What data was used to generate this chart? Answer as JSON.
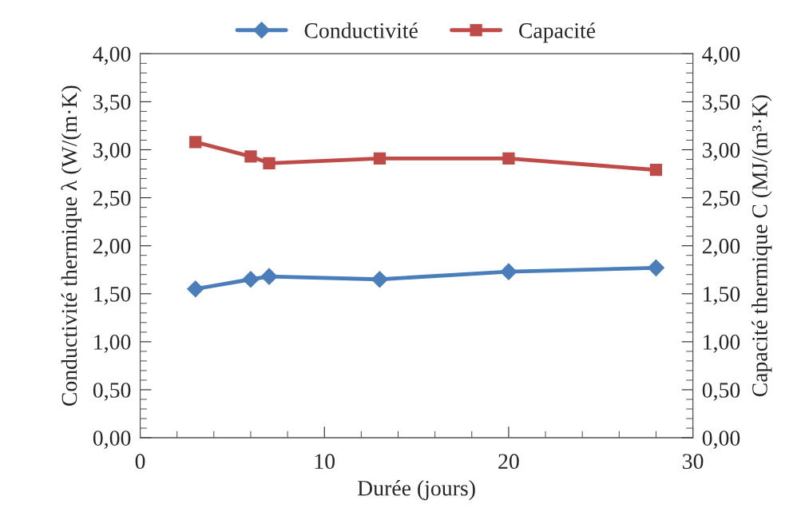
{
  "chart_data": {
    "type": "line",
    "x": [
      3,
      6,
      7,
      13,
      20,
      28
    ],
    "series": [
      {
        "name": "Conductivité",
        "color": "#4a7ebb",
        "marker": "diamond",
        "values": [
          1.55,
          1.65,
          1.68,
          1.65,
          1.73,
          1.77
        ]
      },
      {
        "name": "Capacité",
        "color": "#be4b48",
        "marker": "square",
        "values": [
          3.08,
          2.93,
          2.86,
          2.91,
          2.91,
          2.79
        ]
      }
    ],
    "xlabel": "Durée (jours)",
    "ylabel": "Conductivité thermique λ (W/(m·K)",
    "y2label": "Capacité thermique C (MJ/(m³·K)",
    "xlim": [
      0,
      30
    ],
    "xticks": [
      0,
      10,
      20,
      30
    ],
    "ylim": [
      0,
      4
    ],
    "yticks": [
      {
        "value": 0,
        "label": "0,00"
      },
      {
        "value": 0.5,
        "label": "0,50"
      },
      {
        "value": 1,
        "label": "1,00"
      },
      {
        "value": 1.5,
        "label": "1,50"
      },
      {
        "value": 2,
        "label": "2,00"
      },
      {
        "value": 2.5,
        "label": "2,50"
      },
      {
        "value": 3,
        "label": "3,00"
      },
      {
        "value": 3.5,
        "label": "3,50"
      },
      {
        "value": 4,
        "label": "4,00"
      }
    ],
    "y2lim": [
      0,
      4
    ],
    "y2ticks": [
      {
        "value": 0,
        "label": "0,00"
      },
      {
        "value": 0.5,
        "label": "0,50"
      },
      {
        "value": 1,
        "label": "1,00"
      },
      {
        "value": 1.5,
        "label": "1,50"
      },
      {
        "value": 2,
        "label": "2,00"
      },
      {
        "value": 2.5,
        "label": "2,50"
      },
      {
        "value": 3,
        "label": "3,00"
      },
      {
        "value": 3.5,
        "label": "3,50"
      },
      {
        "value": 4,
        "label": "4,00"
      }
    ],
    "grid": false,
    "legend": "top",
    "line_style": "solid"
  }
}
